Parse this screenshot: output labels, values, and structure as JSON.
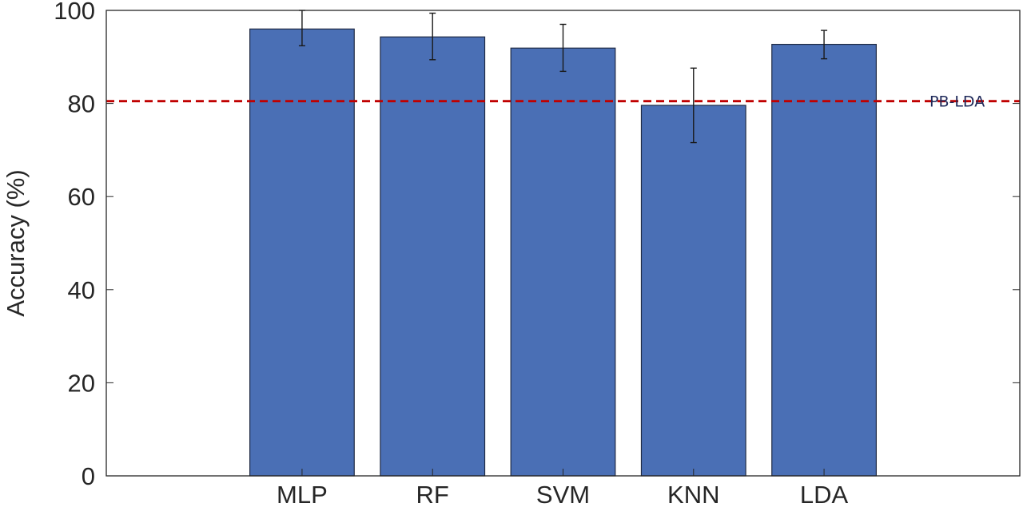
{
  "chart_data": {
    "type": "bar",
    "title": "",
    "xlabel": "",
    "ylabel": "Accuracy (%)",
    "categories": [
      "MLP",
      "RF",
      "SVM",
      "KNN",
      "LDA"
    ],
    "values": [
      96,
      94.3,
      91.9,
      79.6,
      92.7
    ],
    "error_bars": [
      {
        "low": 92.4,
        "high": 100
      },
      {
        "low": 89.4,
        "high": 99.4
      },
      {
        "low": 86.9,
        "high": 97
      },
      {
        "low": 71.6,
        "high": 87.6
      },
      {
        "low": 89.6,
        "high": 95.7
      }
    ],
    "ylim": [
      0,
      100
    ],
    "yticks": [
      0,
      20,
      40,
      60,
      80,
      100
    ],
    "reference_line": {
      "label": "PB-LDA",
      "value": 80.5,
      "color": "#c00000",
      "style": "dashed"
    },
    "bar_color": "#4a6fb5",
    "bar_edge_color": "#1f2a44",
    "grid": false,
    "legend": "none"
  }
}
